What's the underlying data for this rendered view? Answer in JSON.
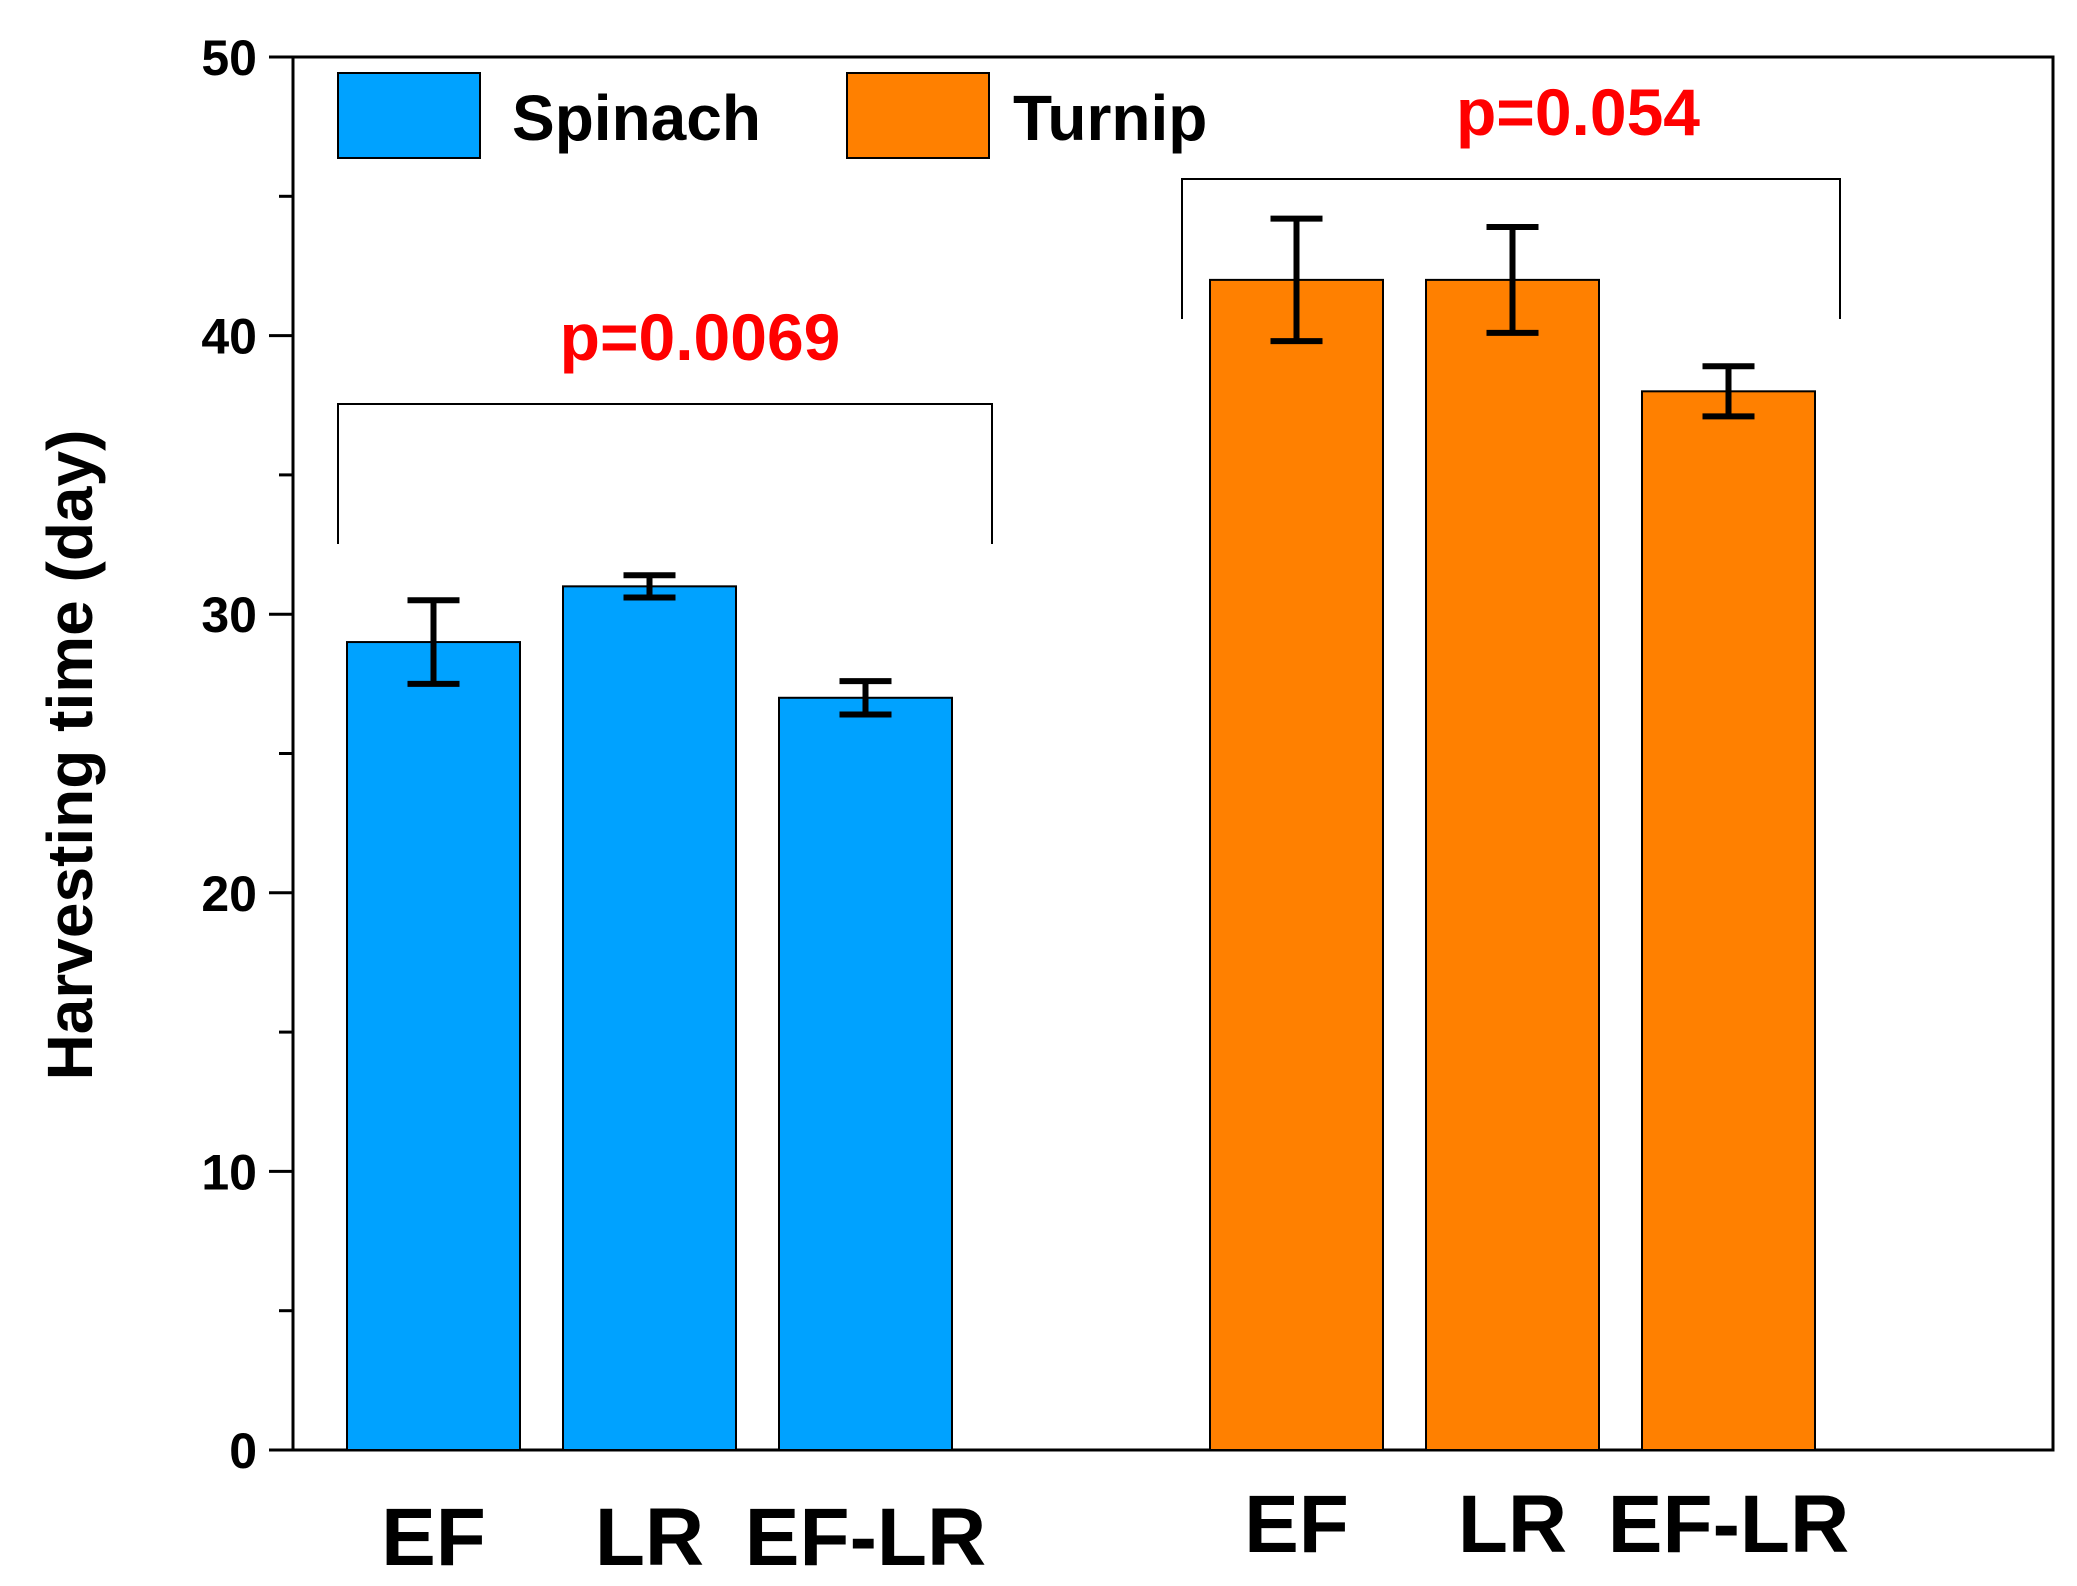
{
  "chart_data": {
    "type": "bar",
    "title": "",
    "xlabel": "",
    "ylabel": "Harvesting time (day)",
    "ylim": [
      0,
      50
    ],
    "yticks": [
      0,
      10,
      20,
      30,
      40,
      50
    ],
    "grid": false,
    "legend_position": "top-left",
    "groups": [
      {
        "name": "Spinach",
        "color": "#00a2ff",
        "categories": [
          "EF",
          "LR",
          "EF-LR"
        ],
        "values": [
          29,
          31,
          27
        ],
        "errors": [
          1.5,
          0.4,
          0.6
        ],
        "p_value": "p=0.0069"
      },
      {
        "name": "Turnip",
        "color": "#ff8000",
        "categories": [
          "EF",
          "LR",
          "EF-LR"
        ],
        "values": [
          42,
          42,
          38
        ],
        "errors": [
          2.2,
          1.9,
          0.9
        ],
        "p_value": "p=0.054"
      }
    ],
    "annotation_color": "#ff0000"
  }
}
